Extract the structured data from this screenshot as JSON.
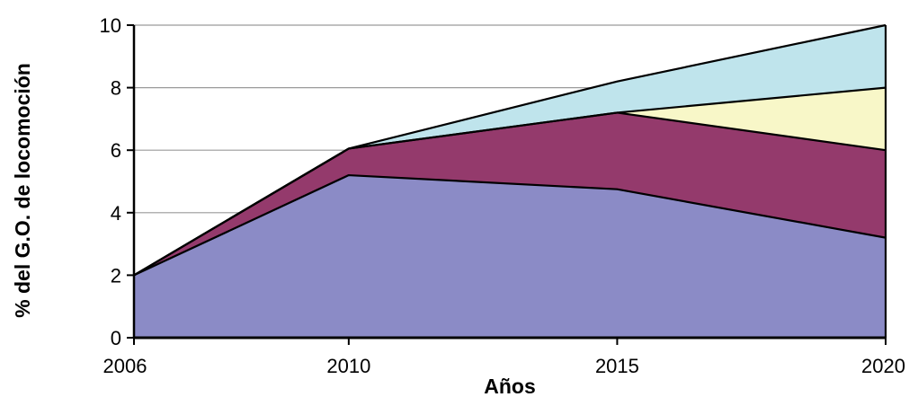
{
  "chart_data": {
    "type": "area",
    "stacked": true,
    "title": "",
    "xlabel": "Años",
    "ylabel": "% del G.O. de locomoción",
    "x": [
      "2006",
      "2010",
      "2015",
      "2020"
    ],
    "ylim": [
      0,
      10
    ],
    "yticks": [
      "0",
      "2",
      "4",
      "6",
      "8",
      "10"
    ],
    "grid": "horizontal",
    "legend": "none",
    "series": [
      {
        "values": [
          2.0,
          5.2,
          4.75,
          3.2
        ],
        "color": "#8b8bc6"
      },
      {
        "values": [
          0.0,
          0.85,
          2.45,
          2.8
        ],
        "color": "#943a6c"
      },
      {
        "values": [
          0.0,
          0.0,
          0.0,
          2.0
        ],
        "color": "#f8f7c8"
      },
      {
        "values": [
          0.0,
          0.0,
          1.0,
          2.0
        ],
        "color": "#bfe4ec"
      }
    ]
  }
}
